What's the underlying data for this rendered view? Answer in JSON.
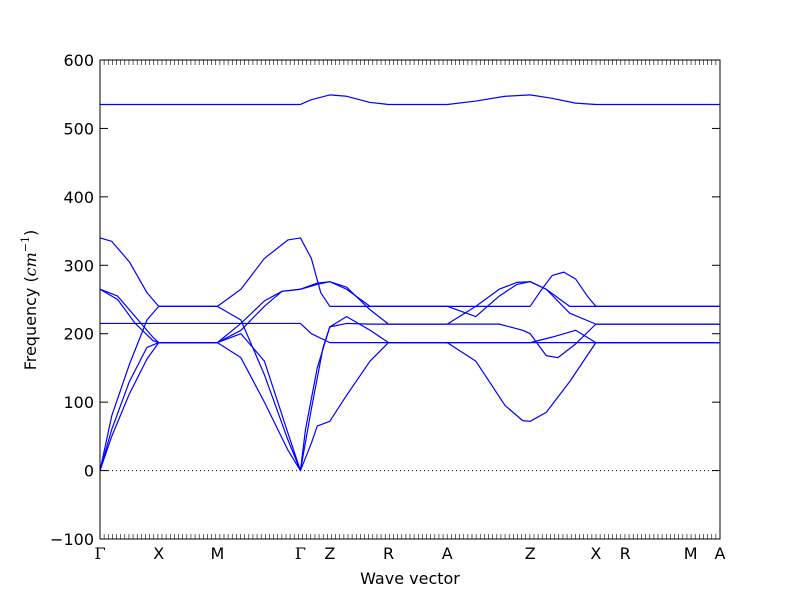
{
  "chart_data": {
    "type": "line",
    "xlabel": "Wave vector",
    "ylabel": "Frequency",
    "ylabel_unit_base": "cm",
    "ylabel_unit_exp": "−1",
    "ylim": [
      -100,
      600
    ],
    "yticks": [
      -100,
      0,
      100,
      200,
      300,
      400,
      500,
      600
    ],
    "grid": false,
    "color": "#0000ff",
    "zero_line": {
      "y": 0,
      "style": "dotted",
      "color": "#000000"
    },
    "x_points": [
      {
        "label": "Γ",
        "x": 0.0
      },
      {
        "label": "X",
        "x": 0.5
      },
      {
        "label": "M",
        "x": 1.0
      },
      {
        "label": "Γ",
        "x": 1.707
      },
      {
        "label": "Z",
        "x": 1.957
      },
      {
        "label": "R",
        "x": 2.457
      },
      {
        "label": "A",
        "x": 2.957
      },
      {
        "label": "Z",
        "x": 3.664
      },
      {
        "label": "X",
        "x": 4.223
      },
      {
        "label": "R",
        "x": 4.473
      },
      {
        "label": "M",
        "x": 5.03
      },
      {
        "label": "A",
        "x": 5.28
      }
    ],
    "series": [
      {
        "points": [
          [
            0,
            0
          ],
          [
            0.1,
            50
          ],
          [
            0.25,
            112
          ],
          [
            0.4,
            163
          ],
          [
            0.5,
            187
          ],
          [
            0.75,
            187
          ],
          [
            1.0,
            187
          ],
          [
            1.2,
            165
          ],
          [
            1.4,
            100
          ],
          [
            1.6,
            30
          ],
          [
            1.707,
            0
          ],
          [
            1.8,
            40
          ],
          [
            1.85,
            65
          ],
          [
            1.957,
            72
          ],
          [
            2.1,
            110
          ],
          [
            2.3,
            160
          ],
          [
            2.457,
            187
          ],
          [
            2.7,
            187
          ],
          [
            2.957,
            187
          ],
          [
            3.2,
            160
          ],
          [
            3.45,
            95
          ],
          [
            3.6,
            73
          ],
          [
            3.664,
            72
          ],
          [
            3.8,
            85
          ],
          [
            4.0,
            130
          ],
          [
            4.223,
            187
          ],
          [
            4.473,
            187
          ],
          [
            5.03,
            187
          ],
          [
            5.28,
            187
          ]
        ]
      },
      {
        "points": [
          [
            0,
            0
          ],
          [
            0.1,
            60
          ],
          [
            0.25,
            130
          ],
          [
            0.4,
            180
          ],
          [
            0.5,
            187
          ],
          [
            0.75,
            187
          ],
          [
            1.0,
            187
          ],
          [
            1.2,
            200
          ],
          [
            1.4,
            160
          ],
          [
            1.6,
            55
          ],
          [
            1.707,
            0
          ],
          [
            1.75,
            60
          ],
          [
            1.85,
            150
          ],
          [
            1.957,
            210
          ],
          [
            2.1,
            225
          ],
          [
            2.3,
            205
          ],
          [
            2.457,
            187
          ],
          [
            2.7,
            187
          ],
          [
            2.957,
            187
          ],
          [
            3.2,
            187
          ],
          [
            3.5,
            187
          ],
          [
            3.664,
            187
          ],
          [
            3.85,
            195
          ],
          [
            4.05,
            205
          ],
          [
            4.223,
            187
          ],
          [
            4.473,
            187
          ],
          [
            5.03,
            187
          ],
          [
            5.28,
            187
          ]
        ]
      },
      {
        "points": [
          [
            0,
            0
          ],
          [
            0.1,
            80
          ],
          [
            0.25,
            155
          ],
          [
            0.4,
            220
          ],
          [
            0.5,
            240
          ],
          [
            0.75,
            240
          ],
          [
            1.0,
            240
          ],
          [
            1.2,
            220
          ],
          [
            1.4,
            140
          ],
          [
            1.6,
            45
          ],
          [
            1.707,
            0
          ],
          [
            1.8,
            90
          ],
          [
            1.9,
            180
          ],
          [
            1.957,
            210
          ],
          [
            2.1,
            215
          ],
          [
            2.3,
            214
          ],
          [
            2.457,
            214
          ],
          [
            2.957,
            214
          ],
          [
            3.1,
            214
          ],
          [
            3.4,
            214
          ],
          [
            3.6,
            205
          ],
          [
            3.664,
            200
          ],
          [
            3.8,
            168
          ],
          [
            3.9,
            165
          ],
          [
            4.05,
            185
          ],
          [
            4.223,
            214
          ],
          [
            4.473,
            214
          ],
          [
            5.03,
            214
          ],
          [
            5.28,
            214
          ]
        ]
      },
      {
        "points": [
          [
            0,
            215
          ],
          [
            0.5,
            215
          ],
          [
            1.0,
            215
          ],
          [
            1.5,
            215
          ],
          [
            1.707,
            215
          ],
          [
            1.8,
            200
          ],
          [
            1.957,
            187
          ],
          [
            2.1,
            187
          ],
          [
            2.457,
            187
          ],
          [
            2.957,
            187
          ],
          [
            3.664,
            187
          ],
          [
            4.223,
            187
          ],
          [
            4.473,
            187
          ],
          [
            5.03,
            187
          ],
          [
            5.28,
            187
          ]
        ]
      },
      {
        "points": [
          [
            0,
            265
          ],
          [
            0.15,
            255
          ],
          [
            0.3,
            225
          ],
          [
            0.45,
            195
          ],
          [
            0.5,
            187
          ],
          [
            0.75,
            187
          ],
          [
            1.0,
            187
          ],
          [
            1.2,
            205
          ],
          [
            1.4,
            240
          ],
          [
            1.55,
            262
          ],
          [
            1.707,
            265
          ],
          [
            1.85,
            274
          ],
          [
            1.957,
            276
          ],
          [
            2.1,
            268
          ],
          [
            2.3,
            235
          ],
          [
            2.457,
            214
          ],
          [
            2.7,
            214
          ],
          [
            2.957,
            214
          ],
          [
            3.2,
            240
          ],
          [
            3.4,
            265
          ],
          [
            3.55,
            275
          ],
          [
            3.664,
            276
          ],
          [
            3.8,
            265
          ],
          [
            4.0,
            230
          ],
          [
            4.223,
            214
          ],
          [
            4.473,
            214
          ],
          [
            5.03,
            214
          ],
          [
            5.28,
            214
          ]
        ]
      },
      {
        "points": [
          [
            0,
            265
          ],
          [
            0.15,
            250
          ],
          [
            0.3,
            215
          ],
          [
            0.45,
            190
          ],
          [
            0.5,
            187
          ],
          [
            0.75,
            187
          ],
          [
            1.0,
            187
          ],
          [
            1.2,
            215
          ],
          [
            1.4,
            248
          ],
          [
            1.55,
            262
          ],
          [
            1.707,
            265
          ],
          [
            1.85,
            272
          ],
          [
            1.957,
            276
          ],
          [
            2.1,
            265
          ],
          [
            2.3,
            240
          ],
          [
            2.457,
            240
          ],
          [
            2.7,
            240
          ],
          [
            2.957,
            240
          ],
          [
            3.2,
            225
          ],
          [
            3.4,
            255
          ],
          [
            3.55,
            272
          ],
          [
            3.664,
            276
          ],
          [
            3.8,
            265
          ],
          [
            4.0,
            240
          ],
          [
            4.223,
            240
          ],
          [
            4.473,
            240
          ],
          [
            5.03,
            240
          ],
          [
            5.28,
            240
          ]
        ]
      },
      {
        "points": [
          [
            0,
            340
          ],
          [
            0.1,
            335
          ],
          [
            0.25,
            305
          ],
          [
            0.4,
            260
          ],
          [
            0.5,
            240
          ],
          [
            0.75,
            240
          ],
          [
            1.0,
            240
          ],
          [
            1.2,
            265
          ],
          [
            1.4,
            310
          ],
          [
            1.6,
            337
          ],
          [
            1.707,
            340
          ],
          [
            1.8,
            310
          ],
          [
            1.88,
            260
          ],
          [
            1.957,
            240
          ],
          [
            2.2,
            240
          ],
          [
            2.457,
            240
          ],
          [
            2.957,
            240
          ],
          [
            3.3,
            240
          ],
          [
            3.664,
            240
          ],
          [
            3.75,
            262
          ],
          [
            3.85,
            285
          ],
          [
            3.95,
            290
          ],
          [
            4.05,
            280
          ],
          [
            4.15,
            255
          ],
          [
            4.223,
            240
          ],
          [
            4.473,
            240
          ],
          [
            5.03,
            240
          ],
          [
            5.28,
            240
          ]
        ]
      },
      {
        "points": [
          [
            0,
            535
          ],
          [
            0.5,
            535
          ],
          [
            1.0,
            535
          ],
          [
            1.707,
            535
          ],
          [
            1.8,
            542
          ],
          [
            1.957,
            549
          ],
          [
            2.1,
            547
          ],
          [
            2.3,
            538
          ],
          [
            2.457,
            535
          ],
          [
            2.957,
            535
          ],
          [
            3.2,
            540
          ],
          [
            3.45,
            547
          ],
          [
            3.664,
            549
          ],
          [
            3.85,
            544
          ],
          [
            4.05,
            537
          ],
          [
            4.223,
            535
          ],
          [
            4.473,
            535
          ],
          [
            5.03,
            535
          ],
          [
            5.28,
            535
          ]
        ]
      }
    ]
  }
}
